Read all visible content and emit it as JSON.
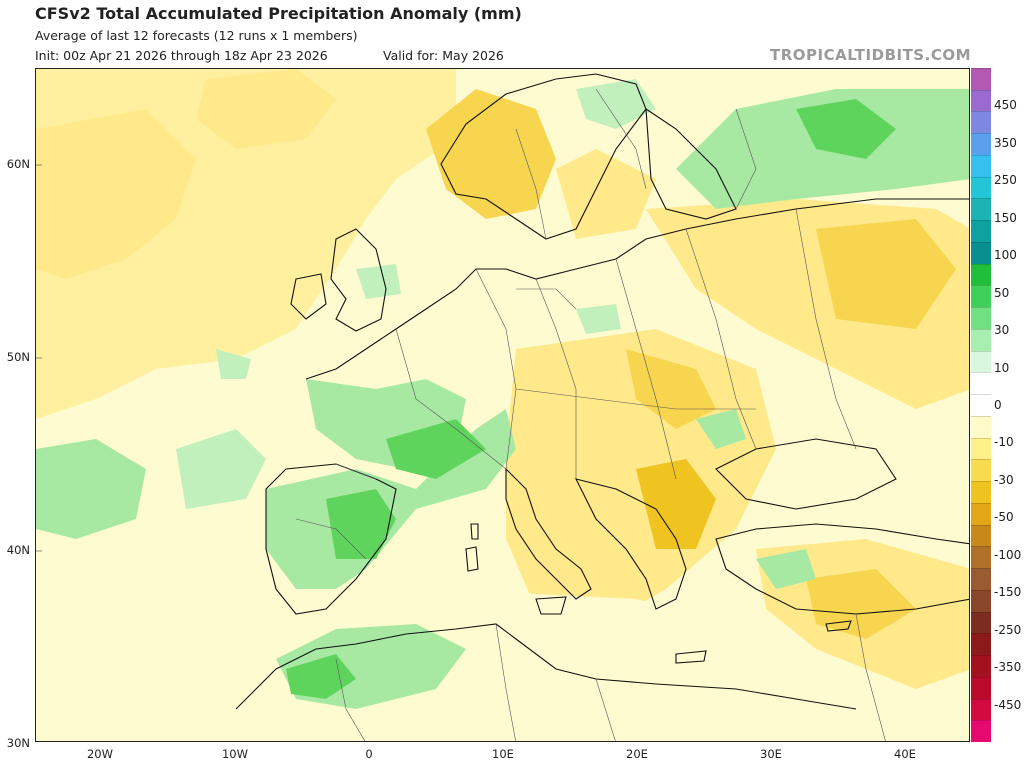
{
  "header": {
    "title": "CFSv2 Total Accumulated Precipitation Anomaly (mm)",
    "subtitle": "Average of last 12 forecasts (12 runs x 1 members)",
    "init": "Init: 00z Apr 21 2026 through 18z Apr 23 2026",
    "valid": "Valid for: May 2026",
    "brand": "TROPICALTIDBITS.COM"
  },
  "axes": {
    "lat_labels": [
      "60N",
      "50N",
      "40N",
      "30N"
    ],
    "lon_labels": [
      "20W",
      "10W",
      "0",
      "10E",
      "20E",
      "30E",
      "40E"
    ]
  },
  "legend": {
    "labels": [
      "450",
      "350",
      "250",
      "150",
      "100",
      "50",
      "30",
      "10",
      "0",
      "-10",
      "-30",
      "-50",
      "-100",
      "-150",
      "-250",
      "-350",
      "-450"
    ],
    "colors": [
      "#b359b3",
      "#9a6ad0",
      "#7e88e0",
      "#5aa0ea",
      "#36c0f0",
      "#22c6d6",
      "#1eb3b3",
      "#0fa0a0",
      "#0a8f8f",
      "#1fbf3c",
      "#3fd05a",
      "#70e080",
      "#a8eeb0",
      "#d8f7dc",
      "#ffffff",
      "#ffffff",
      "#fffbc8",
      "#fff08a",
      "#f8dc50",
      "#f0c420",
      "#e2a616",
      "#c9891a",
      "#b07028",
      "#985c30",
      "#8a4628",
      "#7d2c20",
      "#8c1a1a",
      "#a3101e",
      "#bc0a2a",
      "#d20a40",
      "#e60a70"
    ]
  },
  "colors": {
    "dry_light": "#fff7b8",
    "dry_mid": "#ffe98a",
    "dry_strong": "#f8d54e",
    "wet_light": "#d9f5d6",
    "wet_mid": "#a7e9a3",
    "wet_strong": "#5fd45d",
    "wet_core": "#22c12a",
    "land_line": "#111111",
    "border_line": "#444444"
  }
}
